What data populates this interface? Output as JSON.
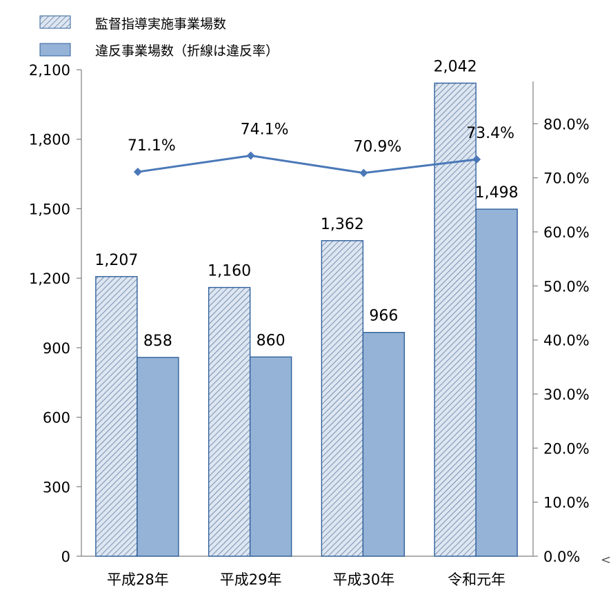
{
  "chart_data": {
    "type": "bar",
    "categories": [
      "平成28年",
      "平成29年",
      "平成30年",
      "令和元年"
    ],
    "series": [
      {
        "name": "監督指導実施事業場数",
        "kind": "bar",
        "axis": "left",
        "pattern": "hatched",
        "values": [
          1207,
          1160,
          1362,
          2042
        ],
        "labels": [
          "1,207",
          "1,160",
          "1,362",
          "2,042"
        ]
      },
      {
        "name": "違反事業場数（折線は違反率）",
        "kind": "bar",
        "axis": "left",
        "pattern": "solid",
        "values": [
          858,
          860,
          966,
          1498
        ],
        "labels": [
          "858",
          "860",
          "966",
          "1,498"
        ]
      },
      {
        "kind": "line",
        "axis": "right",
        "values": [
          71.1,
          74.1,
          70.9,
          73.4
        ],
        "labels": [
          "71.1%",
          "74.1%",
          "70.9%",
          "73.4%"
        ]
      }
    ],
    "y_left": {
      "range": [
        0,
        2100
      ],
      "ticks": [
        0,
        300,
        600,
        900,
        1200,
        1500,
        1800,
        2100
      ],
      "tick_labels": [
        "0",
        "300",
        "600",
        "900",
        "1,200",
        "1,500",
        "1,800",
        "2,100"
      ]
    },
    "y_right": {
      "range": [
        0,
        90
      ],
      "ticks": [
        0,
        10,
        20,
        30,
        40,
        50,
        60,
        70,
        80
      ],
      "tick_labels": [
        "0.0%",
        "10.0%",
        "20.0%",
        "30.0%",
        "40.0%",
        "50.0%",
        "60.0%",
        "70.0%",
        "80.0%"
      ]
    },
    "grid": false,
    "legend_position": "top-left",
    "edge_text": "<",
    "colors": {
      "hatch_fill": "#dde6f1",
      "hatch_line": "#4f6d96",
      "bar_solid": "#95b3d7",
      "bar_stroke": "#2e5f9a",
      "line": "#4a78b8",
      "axis": "#7f7f7f"
    }
  }
}
